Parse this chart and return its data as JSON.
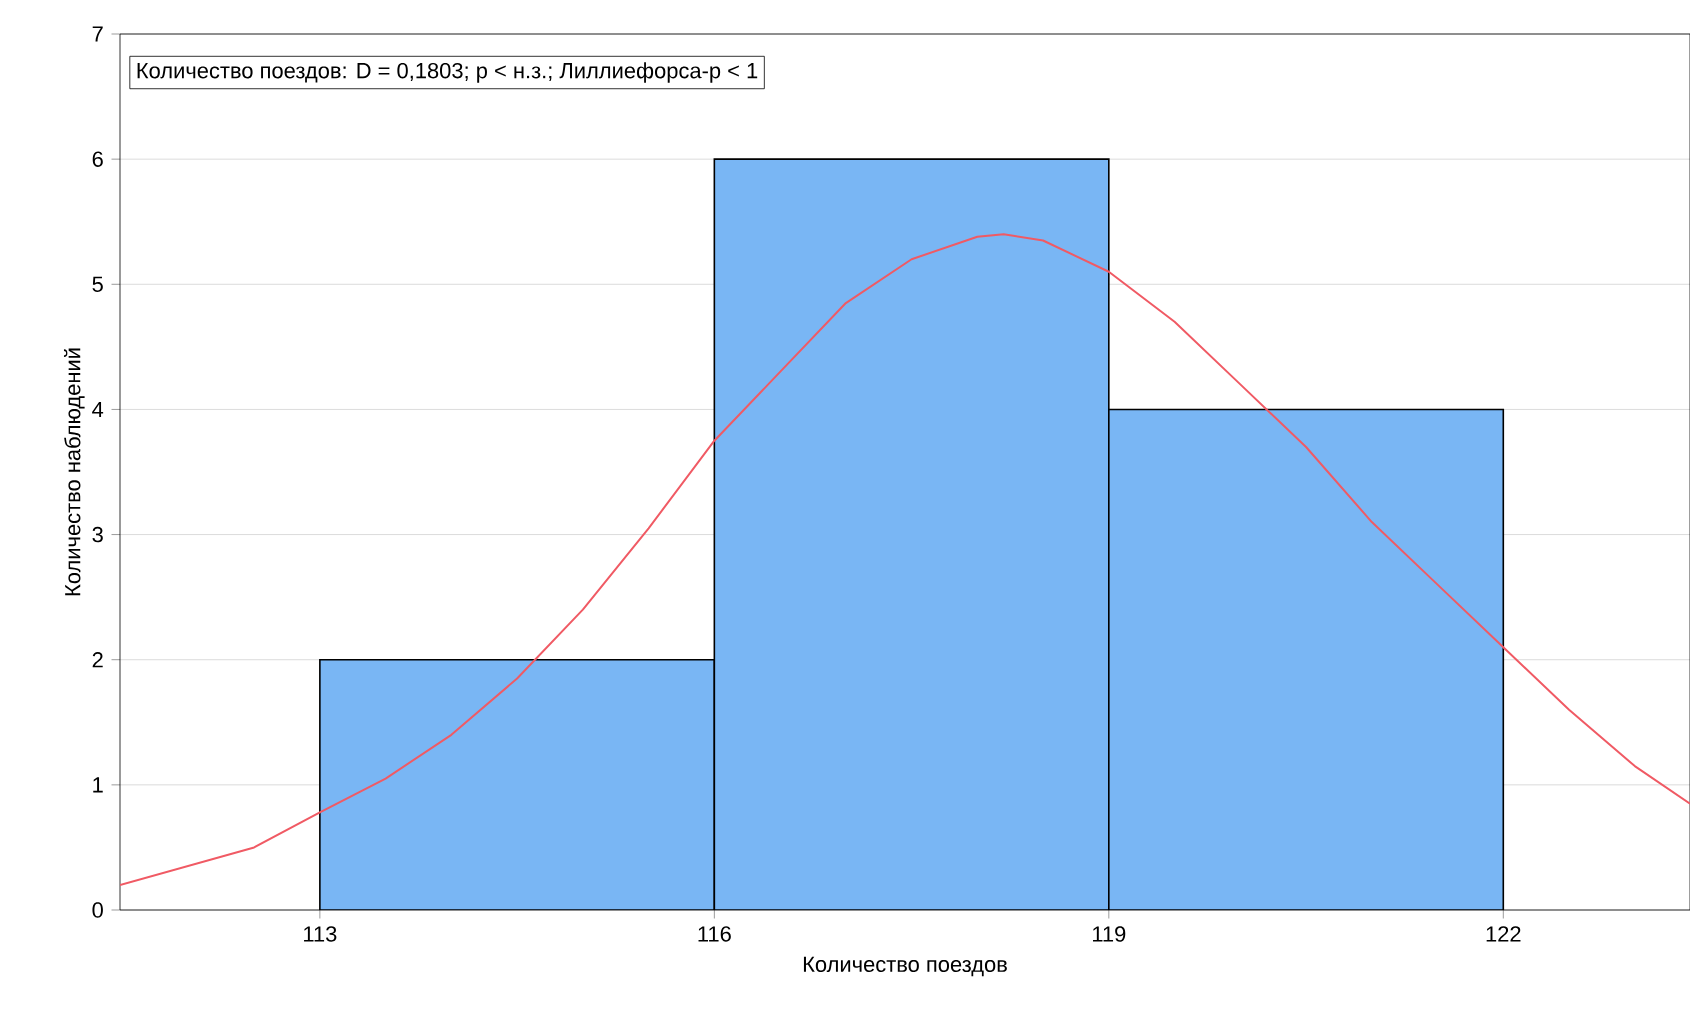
{
  "chart_data": {
    "type": "histogram",
    "title": "Количество поездов:   D = 0,1803; p < н.з.; Лиллиефорса-p < 1",
    "xlabel": "Количество поездов",
    "ylabel": "Количество наблюдений",
    "bins": [
      113,
      116,
      119,
      122
    ],
    "values": [
      2,
      6,
      4
    ],
    "color": "#79b6f4",
    "series": [
      {
        "type": "line",
        "color": "#f05a64",
        "x": [
          111.48,
          112.5,
          113,
          113.5,
          114,
          114.5,
          115,
          115.5,
          116,
          116.5,
          117,
          117.5,
          118,
          118.2,
          118.5,
          119,
          119.5,
          120,
          120.5,
          121,
          121.5,
          122,
          122.5,
          123,
          123.42
        ],
        "values": [
          0.2,
          0.5,
          0.78,
          1.05,
          1.4,
          1.85,
          2.4,
          3.05,
          3.75,
          4.3,
          4.85,
          5.2,
          5.38,
          5.4,
          5.35,
          5.1,
          4.7,
          4.2,
          3.7,
          3.1,
          2.6,
          2.1,
          1.6,
          1.15,
          0.85
        ]
      }
    ],
    "xlim": [
      111.48,
      123.42
    ],
    "xticks": [
      113,
      116,
      119,
      122
    ],
    "ylim": [
      0,
      7
    ],
    "yticks": [
      0,
      1,
      2,
      3,
      4,
      5,
      6,
      7
    ],
    "grid": "y"
  }
}
